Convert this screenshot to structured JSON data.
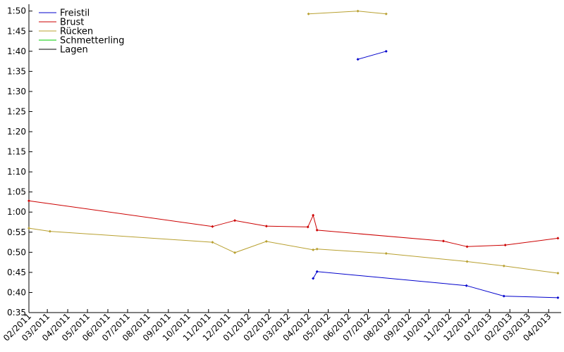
{
  "chart_data": {
    "type": "line",
    "title": "",
    "xlabel": "",
    "ylabel": "",
    "x_ticks": [
      "02/2011",
      "03/2011",
      "04/2011",
      "05/2011",
      "06/2011",
      "07/2011",
      "08/2011",
      "09/2011",
      "10/2011",
      "11/2011",
      "12/2011",
      "01/2012",
      "02/2012",
      "03/2012",
      "04/2012",
      "05/2012",
      "06/2012",
      "07/2012",
      "08/2012",
      "09/2012",
      "10/2012",
      "11/2012",
      "12/2012",
      "01/2013",
      "02/2013",
      "03/2013",
      "04/2013"
    ],
    "y_ticks": [
      "0:35",
      "0:40",
      "0:45",
      "0:50",
      "0:55",
      "1:00",
      "1:05",
      "1:10",
      "1:15",
      "1:20",
      "1:25",
      "1:30",
      "1:35",
      "1:40",
      "1:45",
      "1:50"
    ],
    "ylim": [
      "0:35",
      "1:51"
    ],
    "xlim": [
      "2011-02-01",
      "2013-04-20"
    ],
    "grid": false,
    "legend_position": "top-left",
    "series": [
      {
        "name": "Freistil",
        "color": "#0000cc",
        "segments": [
          [
            [
              "2012-06-15",
              "1:38"
            ],
            [
              "2012-07-28",
              "1:40"
            ]
          ],
          [
            [
              "2012-04-08",
              "0:43.5"
            ],
            [
              "2012-04-14",
              "0:45.2"
            ],
            [
              "2012-11-27",
              "0:41.7"
            ],
            [
              "2013-01-23",
              "0:39.1"
            ],
            [
              "2013-04-15",
              "0:38.7"
            ]
          ]
        ]
      },
      {
        "name": "Brust",
        "color": "#cc0000",
        "segments": [
          [
            [
              "2011-02-01",
              "1:02.8"
            ],
            [
              "2011-11-07",
              "0:56.4"
            ],
            [
              "2011-12-11",
              "0:57.9"
            ],
            [
              "2012-01-28",
              "0:56.5"
            ],
            [
              "2012-03-31",
              "0:56.3"
            ],
            [
              "2012-04-08",
              "0:59.2"
            ],
            [
              "2012-04-14",
              "0:55.5"
            ],
            [
              "2012-10-23",
              "0:52.8"
            ],
            [
              "2012-11-28",
              "0:51.4"
            ],
            [
              "2013-01-25",
              "0:51.8"
            ],
            [
              "2013-04-15",
              "0:53.5"
            ]
          ]
        ]
      },
      {
        "name": "Rücken",
        "color": "#b8a030",
        "segments": [
          [
            [
              "2012-04-01",
              "1:49.3"
            ],
            [
              "2012-06-15",
              "1:50"
            ],
            [
              "2012-07-28",
              "1:49.3"
            ]
          ],
          [
            [
              "2011-02-01",
              "0:56"
            ],
            [
              "2011-03-05",
              "0:55.2"
            ],
            [
              "2011-11-07",
              "0:52.5"
            ],
            [
              "2011-12-11",
              "0:49.9"
            ],
            [
              "2012-01-28",
              "0:52.7"
            ],
            [
              "2012-04-08",
              "0:50.6"
            ],
            [
              "2012-04-14",
              "0:50.8"
            ],
            [
              "2012-07-28",
              "0:49.7"
            ],
            [
              "2012-11-28",
              "0:47.7"
            ],
            [
              "2013-01-23",
              "0:46.6"
            ],
            [
              "2013-04-15",
              "0:44.8"
            ]
          ]
        ]
      },
      {
        "name": "Schmetterling",
        "color": "#00cc00",
        "segments": []
      },
      {
        "name": "Lagen",
        "color": "#000000",
        "segments": []
      }
    ]
  }
}
